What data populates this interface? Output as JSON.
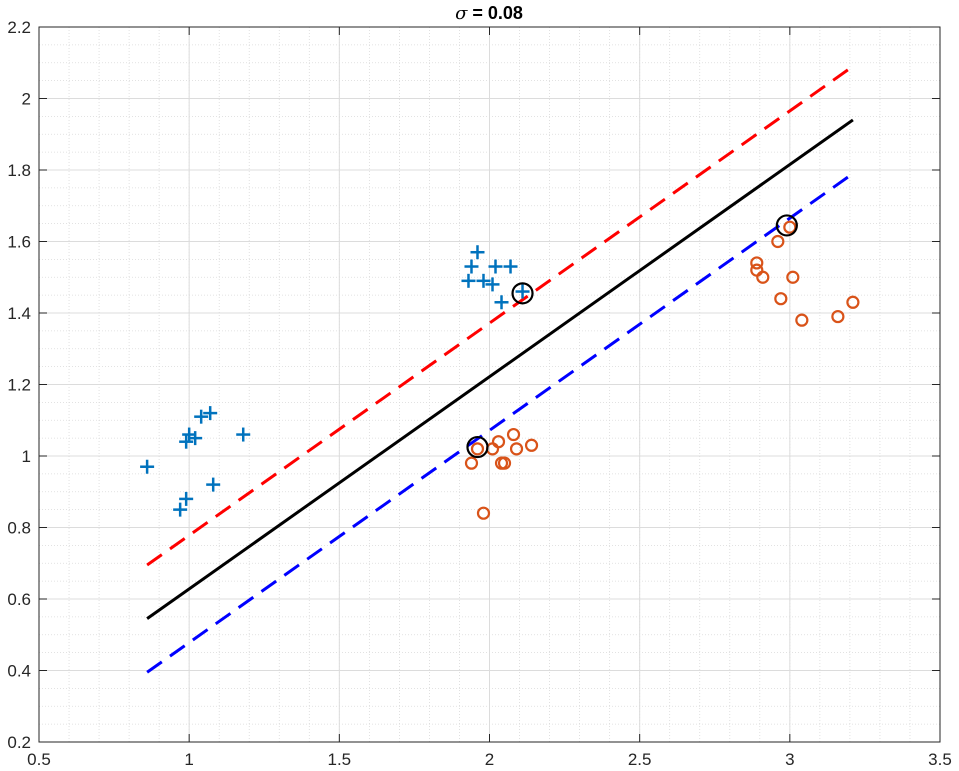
{
  "chart_data": {
    "type": "scatter",
    "title": "σ = 0.08",
    "title_symbol": "σ",
    "title_rest": " = 0.08",
    "xlabel": "",
    "ylabel": "",
    "xlim": [
      0.5,
      3.5
    ],
    "ylim": [
      0.2,
      2.2
    ],
    "xticks": [
      "0.5",
      "1",
      "1.5",
      "2",
      "2.5",
      "3",
      "3.5"
    ],
    "yticks": [
      "0.2",
      "0.4",
      "0.6",
      "0.8",
      "1",
      "1.2",
      "1.4",
      "1.6",
      "1.8",
      "2",
      "2.2"
    ],
    "grid": true,
    "minor_grid": true,
    "legend": "none",
    "colors": {
      "class1": "#0072BD",
      "class2": "#D95319",
      "decision": "#000000",
      "margin_upper": "#FF0000",
      "margin_lower": "#0000FF",
      "support_vector": "#000000"
    },
    "series": [
      {
        "marker": "plus",
        "points": [
          [
            0.86,
            0.97
          ],
          [
            0.97,
            0.85
          ],
          [
            0.99,
            0.88
          ],
          [
            0.99,
            1.04
          ],
          [
            1.0,
            1.06
          ],
          [
            1.02,
            1.05
          ],
          [
            1.04,
            1.11
          ],
          [
            1.07,
            1.12
          ],
          [
            1.08,
            0.92
          ],
          [
            1.18,
            1.06
          ],
          [
            1.93,
            1.49
          ],
          [
            1.94,
            1.53
          ],
          [
            1.96,
            1.57
          ],
          [
            1.98,
            1.49
          ],
          [
            2.01,
            1.48
          ],
          [
            2.02,
            1.53
          ],
          [
            2.04,
            1.43
          ],
          [
            2.07,
            1.53
          ],
          [
            2.11,
            1.46
          ]
        ]
      },
      {
        "marker": "circle",
        "points": [
          [
            1.94,
            0.98
          ],
          [
            1.96,
            1.02
          ],
          [
            1.98,
            0.84
          ],
          [
            2.01,
            1.02
          ],
          [
            2.03,
            1.04
          ],
          [
            2.04,
            0.98
          ],
          [
            2.05,
            0.98
          ],
          [
            2.08,
            1.06
          ],
          [
            2.09,
            1.02
          ],
          [
            2.14,
            1.03
          ],
          [
            2.89,
            1.54
          ],
          [
            2.89,
            1.52
          ],
          [
            2.91,
            1.5
          ],
          [
            2.96,
            1.6
          ],
          [
            2.97,
            1.44
          ],
          [
            3.0,
            1.64
          ],
          [
            3.01,
            1.5
          ],
          [
            3.04,
            1.38
          ],
          [
            3.16,
            1.39
          ],
          [
            3.21,
            1.43
          ]
        ]
      }
    ],
    "lines": [
      {
        "role": "decision",
        "style": "solid",
        "x": [
          0.86,
          3.21
        ],
        "y": [
          0.545,
          1.94
        ]
      },
      {
        "role": "margin_upper",
        "style": "dashed",
        "x": [
          0.86,
          3.21
        ],
        "y": [
          0.695,
          2.09
        ]
      },
      {
        "role": "margin_lower",
        "style": "dashed",
        "x": [
          0.86,
          3.21
        ],
        "y": [
          0.395,
          1.79
        ]
      }
    ],
    "support_vectors": [
      [
        2.11,
        1.455
      ],
      [
        1.96,
        1.025
      ],
      [
        2.99,
        1.645
      ]
    ]
  }
}
